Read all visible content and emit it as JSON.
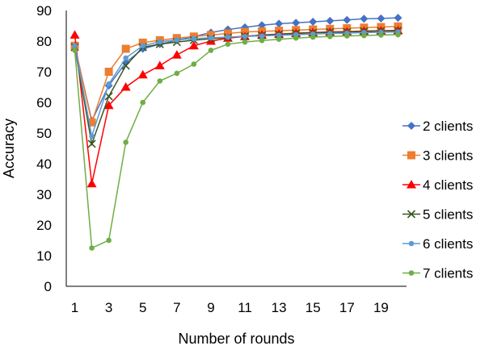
{
  "chart_data": {
    "type": "line",
    "title": "",
    "xlabel": "Number of rounds",
    "ylabel": "Accuracy",
    "ylim": [
      0,
      90
    ],
    "y_ticks": [
      0,
      10,
      20,
      30,
      40,
      50,
      60,
      70,
      80,
      90
    ],
    "x": [
      1,
      2,
      3,
      4,
      5,
      6,
      7,
      8,
      9,
      10,
      11,
      12,
      13,
      14,
      15,
      16,
      17,
      18,
      19,
      20
    ],
    "x_tick_labels": [
      "1",
      "3",
      "5",
      "7",
      "9",
      "11",
      "13",
      "15",
      "17",
      "19"
    ],
    "grid": false,
    "legend_position": "right",
    "series": [
      {
        "name": "2 clients",
        "color": "#4472C4",
        "marker": "diamond",
        "values": [
          78.5,
          54,
          65.5,
          73,
          77.5,
          79,
          80.3,
          81.5,
          82.8,
          83.8,
          84.5,
          85.2,
          85.7,
          86,
          86.3,
          86.6,
          86.9,
          87.3,
          87.4,
          87.6
        ]
      },
      {
        "name": "3 clients",
        "color": "#ED7D31",
        "marker": "square",
        "values": [
          78.5,
          53.5,
          70,
          77.5,
          79.5,
          80.3,
          81,
          81.5,
          82,
          82.5,
          83,
          83.2,
          83.4,
          83.6,
          83.8,
          84,
          84.2,
          84.4,
          84.6,
          84.8
        ]
      },
      {
        "name": "4 clients",
        "color": "#FF0000",
        "marker": "triangle",
        "values": [
          82,
          33.5,
          59,
          65,
          69,
          72,
          75.5,
          78.5,
          80,
          81,
          81.5,
          82,
          82.3,
          82.6,
          82.8,
          83,
          83.1,
          83.3,
          83.4,
          83.5
        ]
      },
      {
        "name": "5 clients",
        "color": "#375623",
        "marker": "x",
        "values": [
          78,
          46.5,
          62,
          72,
          78,
          79,
          79.7,
          80.3,
          80.8,
          81.2,
          81.6,
          81.9,
          82.2,
          82.5,
          82.7,
          82.9,
          83,
          83.2,
          83.3,
          83.4
        ]
      },
      {
        "name": "6 clients",
        "color": "#5B9BD5",
        "marker": "circle",
        "values": [
          78.5,
          49,
          66,
          74.5,
          78.5,
          79.8,
          80.4,
          80.8,
          81.1,
          81.3,
          81.5,
          81.7,
          81.9,
          82.1,
          82.3,
          82.5,
          82.6,
          82.8,
          82.9,
          83
        ]
      },
      {
        "name": "7 clients",
        "color": "#70AD47",
        "marker": "circle",
        "values": [
          77,
          12.5,
          15,
          47,
          60,
          67,
          69.5,
          72.5,
          77,
          79,
          79.7,
          80.2,
          80.6,
          81,
          81.3,
          81.5,
          81.7,
          81.8,
          82,
          82.1
        ]
      }
    ]
  }
}
